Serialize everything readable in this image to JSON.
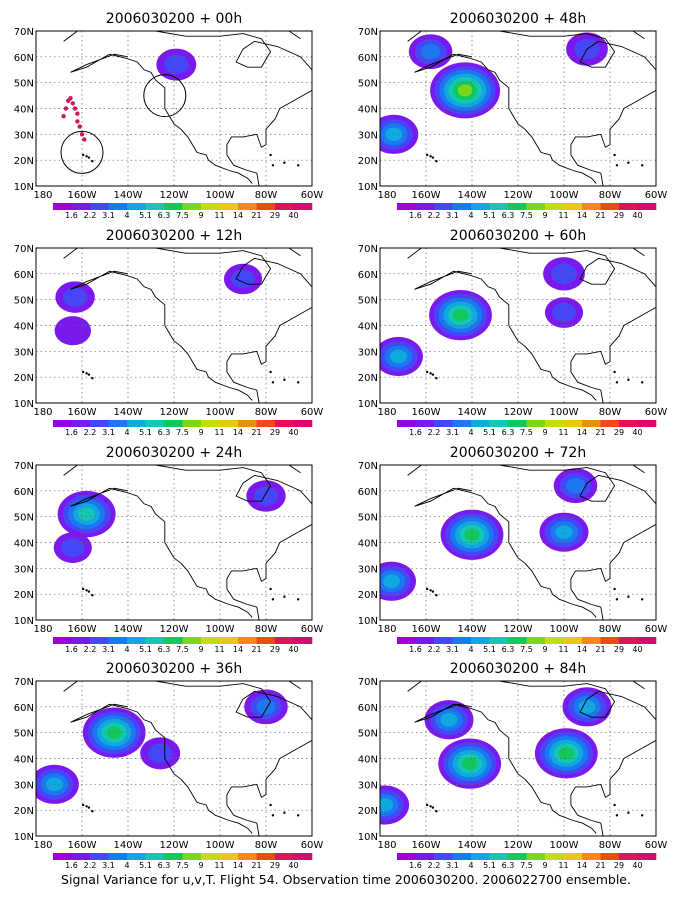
{
  "caption": "Signal Variance for u,v,T. Flight 54. Observation time 2006030200. 2006022700 ensemble.",
  "colorbar": {
    "labels": [
      "1.6",
      "2.2",
      "3.1",
      "4",
      "5.1",
      "6.3",
      "7.5",
      "9",
      "11",
      "14",
      "21",
      "29",
      "40"
    ],
    "colors": [
      "#9a00e0",
      "#7a19ee",
      "#4446f8",
      "#1a78f0",
      "#10a8e0",
      "#14c8b4",
      "#12c85a",
      "#7cd816",
      "#c4dc12",
      "#e8c814",
      "#f08c12",
      "#f04a14",
      "#e01258",
      "#d80a70"
    ]
  },
  "axes": {
    "lon_labels": [
      "180",
      "160W",
      "140W",
      "120W",
      "100W",
      "80W",
      "60W"
    ],
    "lat_labels": [
      "10N",
      "20N",
      "30N",
      "40N",
      "50N",
      "60N",
      "70N"
    ]
  },
  "chart_data": [
    {
      "type": "heatmap",
      "title": "2006030200 + 00h",
      "xlim": [
        "180",
        "60W"
      ],
      "ylim": [
        "10N",
        "70N"
      ],
      "grid": true,
      "observation_track": {
        "lon": [
          -168,
          -167,
          -166,
          -165,
          -164,
          -163,
          -162,
          -162,
          -161,
          -160,
          -159
        ],
        "lat": [
          37,
          40,
          43,
          44,
          42,
          40,
          38,
          35,
          33,
          30,
          28
        ]
      },
      "rings": [
        {
          "lon": -160,
          "lat": 23
        },
        {
          "lon": -124,
          "lat": 45
        }
      ],
      "features": [
        {
          "lon": -119,
          "lat": 57,
          "variance": 2.5
        }
      ]
    },
    {
      "type": "heatmap",
      "title": "2006030200 + 12h",
      "xlim": [
        "180",
        "60W"
      ],
      "ylim": [
        "10N",
        "70N"
      ],
      "grid": true,
      "features": [
        {
          "lon": -163,
          "lat": 51,
          "variance": 2.4
        },
        {
          "lon": -164,
          "lat": 38,
          "variance": 1.9
        },
        {
          "lon": -90,
          "lat": 58,
          "variance": 2.2
        }
      ]
    },
    {
      "type": "heatmap",
      "title": "2006030200 + 24h",
      "xlim": [
        "180",
        "60W"
      ],
      "ylim": [
        "10N",
        "70N"
      ],
      "grid": true,
      "features": [
        {
          "lon": -158,
          "lat": 51,
          "variance": 5.5
        },
        {
          "lon": -164,
          "lat": 38,
          "variance": 2.2
        },
        {
          "lon": -80,
          "lat": 58,
          "variance": 2.4
        }
      ]
    },
    {
      "type": "heatmap",
      "title": "2006030200 + 36h",
      "xlim": [
        "180",
        "60W"
      ],
      "ylim": [
        "10N",
        "70N"
      ],
      "grid": true,
      "features": [
        {
          "lon": -146,
          "lat": 50,
          "variance": 6.3
        },
        {
          "lon": -172,
          "lat": 30,
          "variance": 4
        },
        {
          "lon": -126,
          "lat": 42,
          "variance": 2.5
        },
        {
          "lon": -80,
          "lat": 60,
          "variance": 3.1
        }
      ]
    },
    {
      "type": "heatmap",
      "title": "2006030200 + 48h",
      "xlim": [
        "180",
        "60W"
      ],
      "ylim": [
        "10N",
        "70N"
      ],
      "grid": true,
      "features": [
        {
          "lon": -143,
          "lat": 47,
          "variance": 7.5
        },
        {
          "lon": -174,
          "lat": 30,
          "variance": 4
        },
        {
          "lon": -158,
          "lat": 62,
          "variance": 3.1
        },
        {
          "lon": -90,
          "lat": 63,
          "variance": 2.8
        }
      ]
    },
    {
      "type": "heatmap",
      "title": "2006030200 + 60h",
      "xlim": [
        "180",
        "60W"
      ],
      "ylim": [
        "10N",
        "70N"
      ],
      "grid": true,
      "features": [
        {
          "lon": -145,
          "lat": 44,
          "variance": 6.3
        },
        {
          "lon": -172,
          "lat": 28,
          "variance": 4
        },
        {
          "lon": -100,
          "lat": 60,
          "variance": 2.8
        },
        {
          "lon": -100,
          "lat": 45,
          "variance": 2.2
        }
      ]
    },
    {
      "type": "heatmap",
      "title": "2006030200 + 72h",
      "xlim": [
        "180",
        "60W"
      ],
      "ylim": [
        "10N",
        "70N"
      ],
      "grid": true,
      "features": [
        {
          "lon": -140,
          "lat": 43,
          "variance": 6.3
        },
        {
          "lon": -175,
          "lat": 25,
          "variance": 4
        },
        {
          "lon": -100,
          "lat": 44,
          "variance": 4
        },
        {
          "lon": -95,
          "lat": 62,
          "variance": 3.1
        }
      ]
    },
    {
      "type": "heatmap",
      "title": "2006030200 + 84h",
      "xlim": [
        "180",
        "60W"
      ],
      "ylim": [
        "10N",
        "70N"
      ],
      "grid": true,
      "features": [
        {
          "lon": -141,
          "lat": 38,
          "variance": 6.3
        },
        {
          "lon": -99,
          "lat": 42,
          "variance": 6.3
        },
        {
          "lon": -178,
          "lat": 22,
          "variance": 4
        },
        {
          "lon": -90,
          "lat": 60,
          "variance": 4
        },
        {
          "lon": -150,
          "lat": 55,
          "variance": 4
        }
      ]
    }
  ]
}
